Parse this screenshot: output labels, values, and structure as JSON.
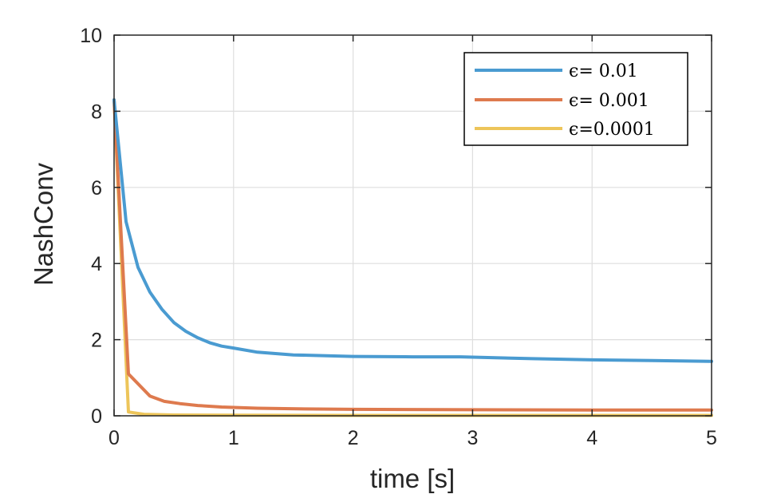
{
  "chart_data": {
    "type": "line",
    "xlabel": "time [s]",
    "ylabel": "NashConv",
    "xlim": [
      0,
      5
    ],
    "ylim": [
      0,
      10
    ],
    "xticks": [
      "0",
      "1",
      "2",
      "3",
      "4",
      "5"
    ],
    "yticks": [
      "0",
      "2",
      "4",
      "6",
      "8",
      "10"
    ],
    "grid": true,
    "legend_position": "top-right",
    "series": [
      {
        "name": "ϵ=  0.01",
        "color": "#4a9bd1",
        "x": [
          0,
          0.1,
          0.2,
          0.3,
          0.4,
          0.5,
          0.6,
          0.7,
          0.8,
          0.9,
          1.0,
          1.2,
          1.5,
          2.0,
          2.5,
          2.9,
          3.5,
          4.0,
          4.5,
          5.0
        ],
        "y": [
          8.3,
          5.1,
          3.9,
          3.25,
          2.8,
          2.45,
          2.22,
          2.05,
          1.92,
          1.83,
          1.78,
          1.67,
          1.6,
          1.56,
          1.55,
          1.55,
          1.5,
          1.47,
          1.45,
          1.43
        ]
      },
      {
        "name": "ϵ= 0.001",
        "color": "#de7a4e",
        "x": [
          0,
          0.12,
          0.3,
          0.42,
          0.55,
          0.7,
          0.9,
          1.2,
          1.6,
          2.0,
          3.0,
          4.0,
          5.0
        ],
        "y": [
          8.3,
          1.1,
          0.52,
          0.38,
          0.32,
          0.27,
          0.23,
          0.2,
          0.18,
          0.17,
          0.16,
          0.15,
          0.15
        ]
      },
      {
        "name": "ϵ=0.0001",
        "color": "#edc55a",
        "x": [
          0,
          0.12,
          0.25,
          0.5,
          1.0,
          2.0,
          3.0,
          4.0,
          5.0
        ],
        "y": [
          8.3,
          0.1,
          0.04,
          0.02,
          0.015,
          0.01,
          0.01,
          0.01,
          0.01
        ]
      }
    ]
  }
}
